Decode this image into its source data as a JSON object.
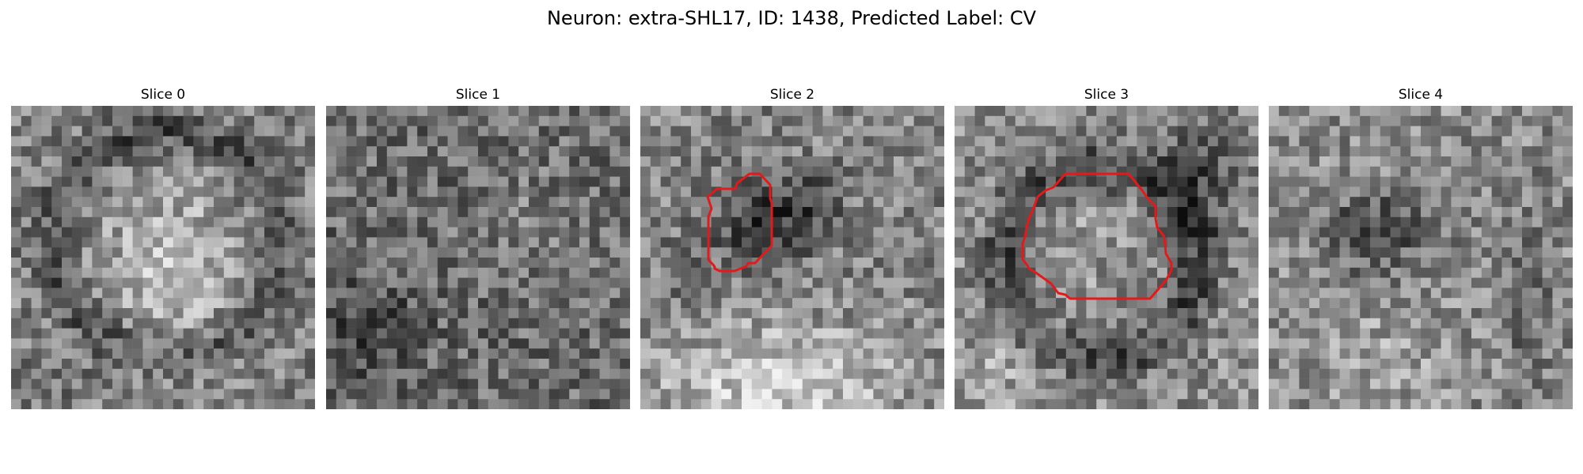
{
  "figure": {
    "suptitle": "Neuron: extra-SHL17, ID: 1438, Predicted Label: CV"
  },
  "panels": [
    {
      "title": "Slice 0",
      "has_contour": false
    },
    {
      "title": "Slice 1",
      "has_contour": false
    },
    {
      "title": "Slice 2",
      "has_contour": true
    },
    {
      "title": "Slice 3",
      "has_contour": true
    },
    {
      "title": "Slice 4",
      "has_contour": false
    }
  ],
  "colors": {
    "contour": "#e31a1c",
    "background": "#ffffff"
  },
  "image": {
    "colormap": "grayscale",
    "grid_cells": 30
  }
}
